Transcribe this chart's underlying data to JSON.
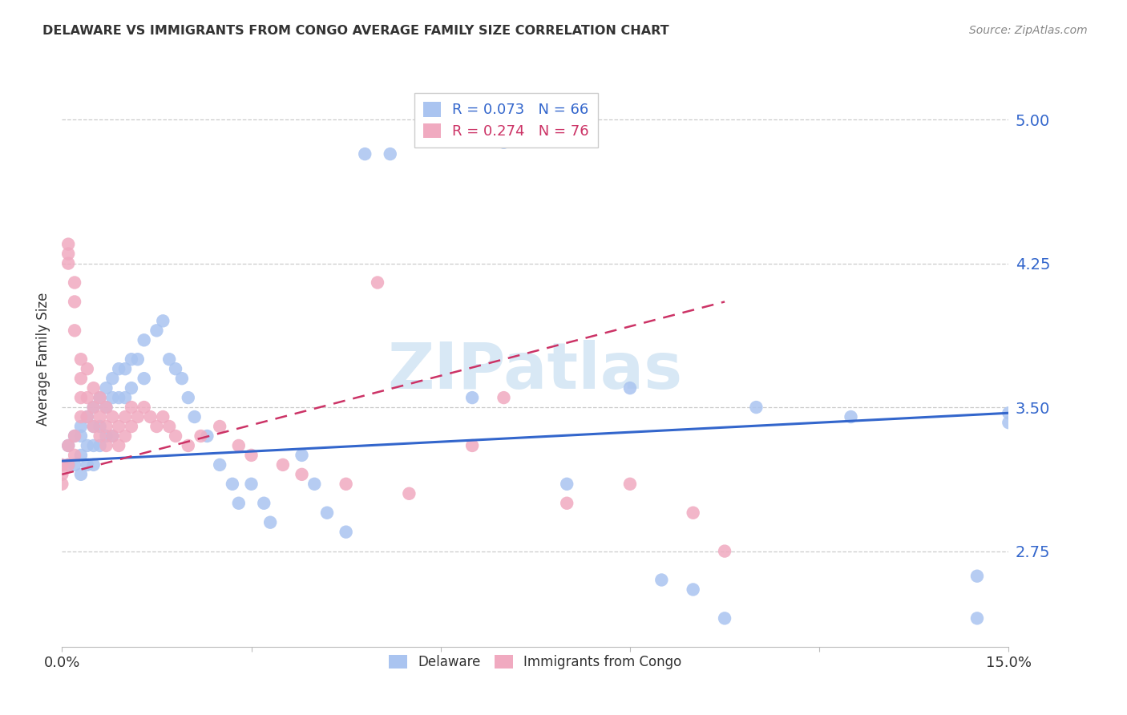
{
  "title": "DELAWARE VS IMMIGRANTS FROM CONGO AVERAGE FAMILY SIZE CORRELATION CHART",
  "source": "Source: ZipAtlas.com",
  "ylabel": "Average Family Size",
  "xlim": [
    0.0,
    0.15
  ],
  "ylim": [
    2.25,
    5.25
  ],
  "yticks": [
    2.75,
    3.5,
    4.25,
    5.0
  ],
  "xticks": [
    0.0,
    0.03,
    0.06,
    0.09,
    0.12,
    0.15
  ],
  "xticklabels": [
    "0.0%",
    "",
    "",
    "",
    "",
    "15.0%"
  ],
  "background_color": "#ffffff",
  "grid_color": "#cccccc",
  "delaware_color": "#aac4f0",
  "congo_color": "#f0aac0",
  "delaware_line_color": "#3366cc",
  "congo_line_color": "#cc3366",
  "watermark": "ZIPatlas",
  "delaware_line_x": [
    0.0,
    0.15
  ],
  "delaware_line_y": [
    3.22,
    3.47
  ],
  "congo_line_x": [
    0.0,
    0.105
  ],
  "congo_line_y": [
    3.15,
    4.05
  ],
  "delaware_scatter_x": [
    0.001,
    0.001,
    0.002,
    0.002,
    0.003,
    0.003,
    0.003,
    0.003,
    0.004,
    0.004,
    0.004,
    0.005,
    0.005,
    0.005,
    0.005,
    0.006,
    0.006,
    0.006,
    0.007,
    0.007,
    0.007,
    0.008,
    0.008,
    0.008,
    0.009,
    0.009,
    0.01,
    0.01,
    0.011,
    0.011,
    0.012,
    0.013,
    0.013,
    0.015,
    0.016,
    0.017,
    0.018,
    0.019,
    0.02,
    0.021,
    0.023,
    0.025,
    0.027,
    0.028,
    0.03,
    0.032,
    0.033,
    0.038,
    0.04,
    0.042,
    0.045,
    0.048,
    0.052,
    0.065,
    0.07,
    0.08,
    0.09,
    0.095,
    0.1,
    0.105,
    0.11,
    0.125,
    0.145,
    0.145,
    0.15,
    0.15
  ],
  "delaware_scatter_y": [
    3.3,
    3.2,
    3.35,
    3.2,
    3.4,
    3.35,
    3.25,
    3.15,
    3.45,
    3.3,
    3.2,
    3.5,
    3.4,
    3.3,
    3.2,
    3.55,
    3.4,
    3.3,
    3.6,
    3.5,
    3.35,
    3.65,
    3.55,
    3.35,
    3.7,
    3.55,
    3.7,
    3.55,
    3.75,
    3.6,
    3.75,
    3.85,
    3.65,
    3.9,
    3.95,
    3.75,
    3.7,
    3.65,
    3.55,
    3.45,
    3.35,
    3.2,
    3.1,
    3.0,
    3.1,
    3.0,
    2.9,
    3.25,
    3.1,
    2.95,
    2.85,
    4.82,
    4.82,
    3.55,
    4.88,
    3.1,
    3.6,
    2.6,
    2.55,
    2.4,
    3.5,
    3.45,
    2.62,
    2.4,
    3.47,
    3.42
  ],
  "congo_scatter_x": [
    0.0,
    0.0,
    0.0,
    0.001,
    0.001,
    0.001,
    0.001,
    0.001,
    0.002,
    0.002,
    0.002,
    0.002,
    0.002,
    0.003,
    0.003,
    0.003,
    0.003,
    0.004,
    0.004,
    0.004,
    0.005,
    0.005,
    0.005,
    0.006,
    0.006,
    0.006,
    0.007,
    0.007,
    0.007,
    0.008,
    0.008,
    0.009,
    0.009,
    0.01,
    0.01,
    0.011,
    0.011,
    0.012,
    0.013,
    0.014,
    0.015,
    0.016,
    0.017,
    0.018,
    0.02,
    0.022,
    0.025,
    0.028,
    0.03,
    0.035,
    0.038,
    0.045,
    0.05,
    0.055,
    0.065,
    0.07,
    0.08,
    0.09,
    0.1,
    0.105
  ],
  "congo_scatter_y": [
    3.2,
    3.15,
    3.1,
    4.35,
    4.3,
    4.25,
    3.3,
    3.2,
    4.15,
    4.05,
    3.9,
    3.35,
    3.25,
    3.75,
    3.65,
    3.55,
    3.45,
    3.7,
    3.55,
    3.45,
    3.6,
    3.5,
    3.4,
    3.55,
    3.45,
    3.35,
    3.5,
    3.4,
    3.3,
    3.45,
    3.35,
    3.4,
    3.3,
    3.45,
    3.35,
    3.5,
    3.4,
    3.45,
    3.5,
    3.45,
    3.4,
    3.45,
    3.4,
    3.35,
    3.3,
    3.35,
    3.4,
    3.3,
    3.25,
    3.2,
    3.15,
    3.1,
    4.15,
    3.05,
    3.3,
    3.55,
    3.0,
    3.1,
    2.95,
    2.75
  ]
}
